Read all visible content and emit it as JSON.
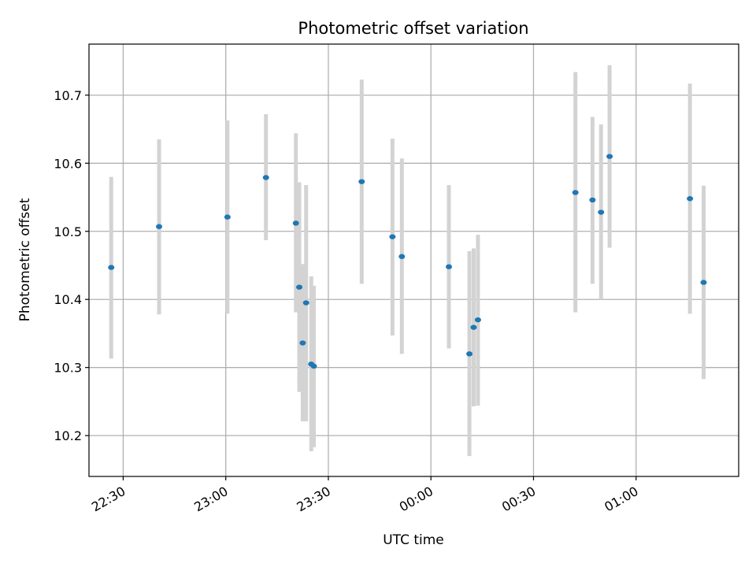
{
  "chart_data": {
    "type": "scatter",
    "title": "Photometric offset variation",
    "xlabel": "UTC time",
    "ylabel": "Photometric offset",
    "x_unit": "UTC time, hours (HH:MM)",
    "xlim": [
      "22:20",
      "01:30"
    ],
    "ylim": [
      10.14,
      10.775
    ],
    "x_ticks": [
      "22:30",
      "23:00",
      "23:30",
      "00:00",
      "00:30",
      "01:00"
    ],
    "y_ticks": [
      "10.2",
      "10.3",
      "10.4",
      "10.5",
      "10.6",
      "10.7"
    ],
    "grid": true,
    "marker_color": "#1f77b4",
    "errorbar_color": "#d3d3d3",
    "points": [
      {
        "time": "22:26:30",
        "y": 10.447,
        "ymin": 10.313,
        "ymax": 10.58
      },
      {
        "time": "22:40:30",
        "y": 10.507,
        "ymin": 10.378,
        "ymax": 10.635
      },
      {
        "time": "23:00:30",
        "y": 10.521,
        "ymin": 10.379,
        "ymax": 10.663
      },
      {
        "time": "23:11:45",
        "y": 10.579,
        "ymin": 10.487,
        "ymax": 10.672
      },
      {
        "time": "23:20:30",
        "y": 10.512,
        "ymin": 10.381,
        "ymax": 10.644
      },
      {
        "time": "23:21:30",
        "y": 10.418,
        "ymin": 10.264,
        "ymax": 10.572
      },
      {
        "time": "23:22:30",
        "y": 10.336,
        "ymin": 10.221,
        "ymax": 10.452
      },
      {
        "time": "23:23:30",
        "y": 10.395,
        "ymin": 10.221,
        "ymax": 10.568
      },
      {
        "time": "23:25:00",
        "y": 10.305,
        "ymin": 10.177,
        "ymax": 10.434
      },
      {
        "time": "23:25:45",
        "y": 10.302,
        "ymin": 10.183,
        "ymax": 10.42
      },
      {
        "time": "23:39:45",
        "y": 10.573,
        "ymin": 10.423,
        "ymax": 10.723
      },
      {
        "time": "23:48:45",
        "y": 10.492,
        "ymin": 10.347,
        "ymax": 10.636
      },
      {
        "time": "23:51:30",
        "y": 10.463,
        "ymin": 10.32,
        "ymax": 10.607
      },
      {
        "time": "00:05:15",
        "y": 10.448,
        "ymin": 10.328,
        "ymax": 10.568
      },
      {
        "time": "00:11:15",
        "y": 10.32,
        "ymin": 10.17,
        "ymax": 10.471
      },
      {
        "time": "00:12:30",
        "y": 10.359,
        "ymin": 10.243,
        "ymax": 10.475
      },
      {
        "time": "00:13:45",
        "y": 10.37,
        "ymin": 10.244,
        "ymax": 10.495
      },
      {
        "time": "00:42:15",
        "y": 10.557,
        "ymin": 10.381,
        "ymax": 10.734
      },
      {
        "time": "00:47:15",
        "y": 10.546,
        "ymin": 10.423,
        "ymax": 10.668
      },
      {
        "time": "00:49:45",
        "y": 10.528,
        "ymin": 10.4,
        "ymax": 10.657
      },
      {
        "time": "00:52:15",
        "y": 10.61,
        "ymin": 10.476,
        "ymax": 10.744
      },
      {
        "time": "01:15:45",
        "y": 10.548,
        "ymin": 10.379,
        "ymax": 10.717
      },
      {
        "time": "01:19:45",
        "y": 10.425,
        "ymin": 10.283,
        "ymax": 10.567
      }
    ]
  }
}
